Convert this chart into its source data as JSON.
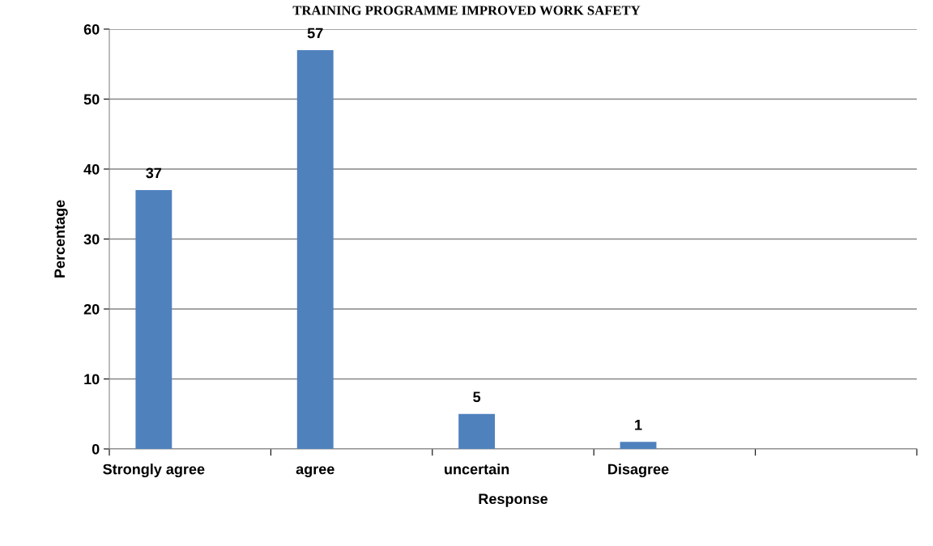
{
  "chart_data": {
    "type": "bar",
    "title": "TRAINING PROGRAMME IMPROVED WORK SAFETY",
    "xlabel": "Response",
    "ylabel": "Percentage",
    "categories": [
      "Strongly agree",
      "agree",
      "uncertain",
      "Disagree",
      null
    ],
    "values": [
      37,
      57,
      5,
      1,
      null
    ],
    "color": "#4f81bd",
    "data_labels": true,
    "ylim": [
      0,
      60
    ],
    "yticks": [
      0,
      10,
      20,
      30,
      40,
      50,
      60
    ],
    "grid": "y",
    "legend": false
  }
}
